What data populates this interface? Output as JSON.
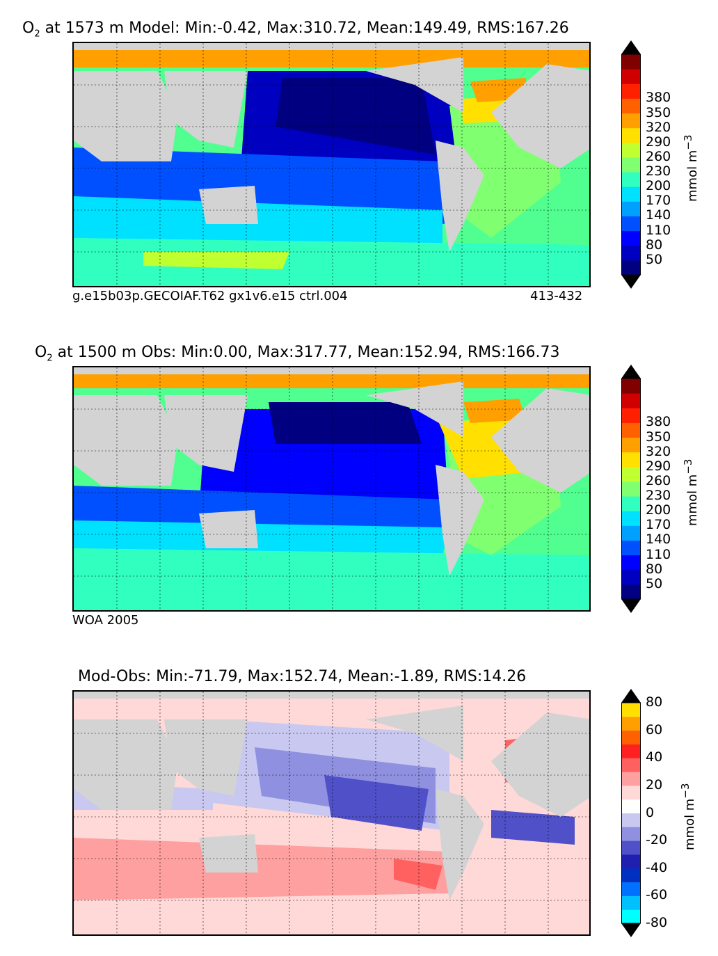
{
  "panels": [
    {
      "id": "model",
      "title_prefix": "O",
      "title_sub": "2",
      "title_rest": "at 1573 m Model: Min:-0.42, Max:310.72, Mean:149.49, RMS:167.26",
      "caption_left": "g.e15b03p.GECOIAF.T62 gx1v6.e15 ctrl.004",
      "caption_right": "413-432",
      "colorbar": {
        "ticks": [
          "380",
          "350",
          "320",
          "290",
          "260",
          "230",
          "200",
          "170",
          "140",
          "110",
          "80",
          "50"
        ],
        "colors": [
          "#000080",
          "#0000c0",
          "#0000ff",
          "#0050ff",
          "#00a0ff",
          "#00e0ff",
          "#30ffc0",
          "#80ff70",
          "#c0ff30",
          "#ffe000",
          "#ffa000",
          "#ff6000",
          "#ff2000",
          "#d00000",
          "#800000"
        ],
        "unit": "mmol m",
        "unit_sup": "−3"
      }
    },
    {
      "id": "obs",
      "title_prefix": "O",
      "title_sub": "2",
      "title_rest": "at 1500 m Obs: Min:0.00, Max:317.77, Mean:152.94, RMS:166.73",
      "caption_left": "WOA 2005",
      "caption_right": "",
      "colorbar": {
        "ticks": [
          "380",
          "350",
          "320",
          "290",
          "260",
          "230",
          "200",
          "170",
          "140",
          "110",
          "80",
          "50"
        ],
        "colors": [
          "#000080",
          "#0000c0",
          "#0000ff",
          "#0050ff",
          "#00a0ff",
          "#00e0ff",
          "#30ffc0",
          "#80ff70",
          "#c0ff30",
          "#ffe000",
          "#ffa000",
          "#ff6000",
          "#ff2000",
          "#d00000",
          "#800000"
        ],
        "unit": "mmol m",
        "unit_sup": "−3"
      }
    },
    {
      "id": "diff",
      "title_prefix": "",
      "title_sub": "",
      "title_rest": "Mod-Obs: Min:-71.79, Max:152.74, Mean:-1.89, RMS:14.26",
      "caption_left": "",
      "caption_right": "",
      "colorbar": {
        "ticks": [
          "80",
          "60",
          "40",
          "20",
          "0",
          "-20",
          "-40",
          "-60",
          "-80"
        ],
        "colors": [
          "#00ffff",
          "#00c0ff",
          "#0070ff",
          "#0030c0",
          "#2020b0",
          "#5050c8",
          "#9090e0",
          "#c8c8f0",
          "#ffffff",
          "#ffd8d8",
          "#ffa0a0",
          "#ff6060",
          "#ff2020",
          "#ff6000",
          "#ffa000",
          "#ffe000"
        ],
        "unit": "mmol m",
        "unit_sup": "−3"
      }
    }
  ],
  "chart_data": [
    {
      "type": "heatmap",
      "title": "O2 at 1573 m Model: Min:-0.42, Max:310.72, Mean:149.49, RMS:167.26",
      "field": "O2",
      "depth": "1573 m",
      "stats": {
        "min": -0.42,
        "max": 310.72,
        "mean": 149.49,
        "rms": 167.26
      },
      "colorbar_levels": [
        50,
        80,
        110,
        140,
        170,
        200,
        230,
        260,
        290,
        320,
        350,
        380
      ],
      "unit": "mmol m^-3"
    },
    {
      "type": "heatmap",
      "title": "O2 at 1500 m Obs: Min:0.00, Max:317.77, Mean:152.94, RMS:166.73",
      "field": "O2",
      "depth": "1500 m",
      "stats": {
        "min": 0.0,
        "max": 317.77,
        "mean": 152.94,
        "rms": 166.73
      },
      "colorbar_levels": [
        50,
        80,
        110,
        140,
        170,
        200,
        230,
        260,
        290,
        320,
        350,
        380
      ],
      "unit": "mmol m^-3"
    },
    {
      "type": "heatmap",
      "title": "Mod-Obs: Min:-71.79, Max:152.74, Mean:-1.89, RMS:14.26",
      "stats": {
        "min": -71.79,
        "max": 152.74,
        "mean": -1.89,
        "rms": 14.26
      },
      "colorbar_levels": [
        -80,
        -60,
        -40,
        -20,
        0,
        20,
        40,
        60,
        80
      ],
      "unit": "mmol m^-3"
    }
  ]
}
